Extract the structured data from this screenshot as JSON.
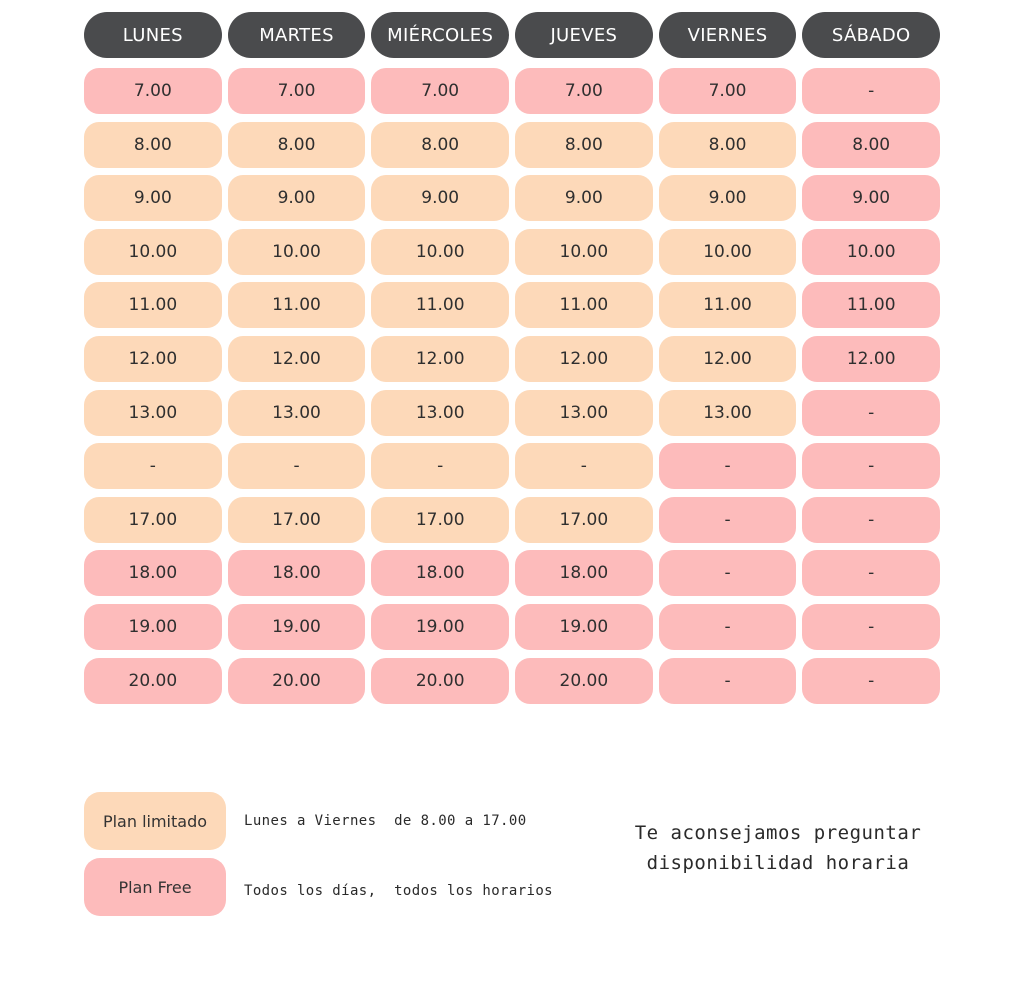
{
  "days": [
    "LUNES",
    "MARTES",
    "MIÉRCOLES",
    "JUEVES",
    "VIERNES",
    "SÁBADO"
  ],
  "rows": [
    [
      {
        "t": "7.00",
        "p": "F"
      },
      {
        "t": "7.00",
        "p": "F"
      },
      {
        "t": "7.00",
        "p": "F"
      },
      {
        "t": "7.00",
        "p": "F"
      },
      {
        "t": "7.00",
        "p": "F"
      },
      {
        "t": "-",
        "p": "F"
      }
    ],
    [
      {
        "t": "8.00",
        "p": "L"
      },
      {
        "t": "8.00",
        "p": "L"
      },
      {
        "t": "8.00",
        "p": "L"
      },
      {
        "t": "8.00",
        "p": "L"
      },
      {
        "t": "8.00",
        "p": "L"
      },
      {
        "t": "8.00",
        "p": "F"
      }
    ],
    [
      {
        "t": "9.00",
        "p": "L"
      },
      {
        "t": "9.00",
        "p": "L"
      },
      {
        "t": "9.00",
        "p": "L"
      },
      {
        "t": "9.00",
        "p": "L"
      },
      {
        "t": "9.00",
        "p": "L"
      },
      {
        "t": "9.00",
        "p": "F"
      }
    ],
    [
      {
        "t": "10.00",
        "p": "L"
      },
      {
        "t": "10.00",
        "p": "L"
      },
      {
        "t": "10.00",
        "p": "L"
      },
      {
        "t": "10.00",
        "p": "L"
      },
      {
        "t": "10.00",
        "p": "L"
      },
      {
        "t": "10.00",
        "p": "F"
      }
    ],
    [
      {
        "t": "11.00",
        "p": "L"
      },
      {
        "t": "11.00",
        "p": "L"
      },
      {
        "t": "11.00",
        "p": "L"
      },
      {
        "t": "11.00",
        "p": "L"
      },
      {
        "t": "11.00",
        "p": "L"
      },
      {
        "t": "11.00",
        "p": "F"
      }
    ],
    [
      {
        "t": "12.00",
        "p": "L"
      },
      {
        "t": "12.00",
        "p": "L"
      },
      {
        "t": "12.00",
        "p": "L"
      },
      {
        "t": "12.00",
        "p": "L"
      },
      {
        "t": "12.00",
        "p": "L"
      },
      {
        "t": "12.00",
        "p": "F"
      }
    ],
    [
      {
        "t": "13.00",
        "p": "L"
      },
      {
        "t": "13.00",
        "p": "L"
      },
      {
        "t": "13.00",
        "p": "L"
      },
      {
        "t": "13.00",
        "p": "L"
      },
      {
        "t": "13.00",
        "p": "L"
      },
      {
        "t": "-",
        "p": "F"
      }
    ],
    [
      {
        "t": "-",
        "p": "L"
      },
      {
        "t": "-",
        "p": "L"
      },
      {
        "t": "-",
        "p": "L"
      },
      {
        "t": "-",
        "p": "L"
      },
      {
        "t": "-",
        "p": "F"
      },
      {
        "t": "-",
        "p": "F"
      }
    ],
    [
      {
        "t": "17.00",
        "p": "L"
      },
      {
        "t": "17.00",
        "p": "L"
      },
      {
        "t": "17.00",
        "p": "L"
      },
      {
        "t": "17.00",
        "p": "L"
      },
      {
        "t": "-",
        "p": "F"
      },
      {
        "t": "-",
        "p": "F"
      }
    ],
    [
      {
        "t": "18.00",
        "p": "F"
      },
      {
        "t": "18.00",
        "p": "F"
      },
      {
        "t": "18.00",
        "p": "F"
      },
      {
        "t": "18.00",
        "p": "F"
      },
      {
        "t": "-",
        "p": "F"
      },
      {
        "t": "-",
        "p": "F"
      }
    ],
    [
      {
        "t": "19.00",
        "p": "F"
      },
      {
        "t": "19.00",
        "p": "F"
      },
      {
        "t": "19.00",
        "p": "F"
      },
      {
        "t": "19.00",
        "p": "F"
      },
      {
        "t": "-",
        "p": "F"
      },
      {
        "t": "-",
        "p": "F"
      }
    ],
    [
      {
        "t": "20.00",
        "p": "F"
      },
      {
        "t": "20.00",
        "p": "F"
      },
      {
        "t": "20.00",
        "p": "F"
      },
      {
        "t": "20.00",
        "p": "F"
      },
      {
        "t": "-",
        "p": "F"
      },
      {
        "t": "-",
        "p": "F"
      }
    ]
  ],
  "legend": {
    "limited": {
      "label": "Plan limitado",
      "desc": "Lunes a Viernes  de 8.00 a 17.00"
    },
    "free": {
      "label": "Plan Free",
      "desc": "Todos los días,  todos los horarios"
    }
  },
  "advice": {
    "line1": "Te aconsejamos preguntar",
    "line2": "disponibilidad horaria"
  },
  "colors": {
    "header": "#4a4b4d",
    "limited": "#fdd9b9",
    "free": "#fdbbbb"
  }
}
